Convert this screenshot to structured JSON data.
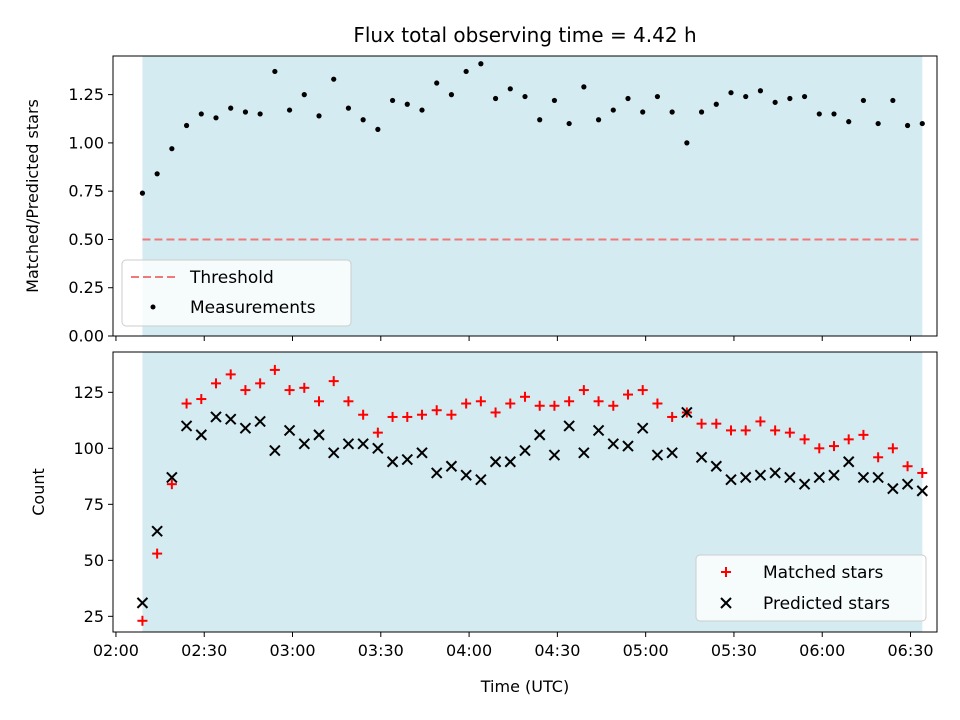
{
  "chart_data": [
    {
      "type": "scatter",
      "title": "Flux total observing time = 4.42 h",
      "xlabel": "",
      "ylabel": "Matched/Predicted stars",
      "ylim": [
        0,
        1.45
      ],
      "yticks": [
        0.0,
        0.25,
        0.5,
        0.75,
        1.0,
        1.25
      ],
      "ytick_labels": [
        "0.00",
        "0.25",
        "0.50",
        "0.75",
        "1.00",
        "1.25"
      ],
      "xlim": [
        "01:59",
        "06:39"
      ],
      "shaded_span": [
        "02:09",
        "06:34"
      ],
      "shade_color": "#d3ebf1",
      "threshold": {
        "name": "Threshold",
        "value": 0.5,
        "color": "#f07878"
      },
      "legend_position": "lower-left",
      "series": [
        {
          "name": "Measurements",
          "color": "#000000",
          "marker": "dot",
          "x": [
            "02:09",
            "02:14",
            "02:19",
            "02:24",
            "02:29",
            "02:34",
            "02:39",
            "02:44",
            "02:49",
            "02:54",
            "02:59",
            "03:04",
            "03:09",
            "03:14",
            "03:19",
            "03:24",
            "03:29",
            "03:34",
            "03:39",
            "03:44",
            "03:49",
            "03:54",
            "03:59",
            "04:04",
            "04:09",
            "04:14",
            "04:19",
            "04:24",
            "04:29",
            "04:34",
            "04:39",
            "04:44",
            "04:49",
            "04:54",
            "04:59",
            "05:04",
            "05:09",
            "05:14",
            "05:19",
            "05:24",
            "05:29",
            "05:34",
            "05:39",
            "05:44",
            "05:49",
            "05:54",
            "05:59",
            "06:04",
            "06:09",
            "06:14",
            "06:19",
            "06:24",
            "06:29",
            "06:34"
          ],
          "y": [
            0.74,
            0.84,
            0.97,
            1.09,
            1.15,
            1.13,
            1.18,
            1.16,
            1.15,
            1.37,
            1.17,
            1.25,
            1.14,
            1.33,
            1.18,
            1.12,
            1.07,
            1.22,
            1.2,
            1.17,
            1.31,
            1.25,
            1.37,
            1.41,
            1.23,
            1.28,
            1.24,
            1.12,
            1.22,
            1.1,
            1.29,
            1.12,
            1.17,
            1.23,
            1.16,
            1.24,
            1.16,
            1.0,
            1.16,
            1.2,
            1.26,
            1.24,
            1.27,
            1.21,
            1.23,
            1.24,
            1.15,
            1.15,
            1.11,
            1.22,
            1.1,
            1.22,
            1.09,
            1.1
          ]
        }
      ]
    },
    {
      "type": "scatter",
      "title": "",
      "xlabel": "Time (UTC)",
      "ylabel": "Count",
      "ylim": [
        18,
        143
      ],
      "yticks": [
        25,
        50,
        75,
        100,
        125
      ],
      "ytick_labels": [
        "25",
        "50",
        "75",
        "100",
        "125"
      ],
      "xlim": [
        "01:59",
        "06:39"
      ],
      "xticks": [
        "02:00",
        "02:30",
        "03:00",
        "03:30",
        "04:00",
        "04:30",
        "05:00",
        "05:30",
        "06:00",
        "06:30"
      ],
      "shaded_span": [
        "02:09",
        "06:34"
      ],
      "shade_color": "#d3ebf1",
      "legend_position": "lower-right",
      "x": [
        "02:09",
        "02:14",
        "02:19",
        "02:24",
        "02:29",
        "02:34",
        "02:39",
        "02:44",
        "02:49",
        "02:54",
        "02:59",
        "03:04",
        "03:09",
        "03:14",
        "03:19",
        "03:24",
        "03:29",
        "03:34",
        "03:39",
        "03:44",
        "03:49",
        "03:54",
        "03:59",
        "04:04",
        "04:09",
        "04:14",
        "04:19",
        "04:24",
        "04:29",
        "04:34",
        "04:39",
        "04:44",
        "04:49",
        "04:54",
        "04:59",
        "05:04",
        "05:09",
        "05:14",
        "05:19",
        "05:24",
        "05:29",
        "05:34",
        "05:39",
        "05:44",
        "05:49",
        "05:54",
        "05:59",
        "06:04",
        "06:09",
        "06:14",
        "06:19",
        "06:24",
        "06:29",
        "06:34"
      ],
      "series": [
        {
          "name": "Matched stars",
          "color": "#ff0000",
          "marker": "plus",
          "values": [
            23,
            53,
            84,
            120,
            122,
            129,
            133,
            126,
            129,
            135,
            126,
            127,
            121,
            130,
            121,
            115,
            107,
            114,
            114,
            115,
            117,
            115,
            120,
            121,
            116,
            120,
            123,
            119,
            119,
            121,
            126,
            121,
            119,
            124,
            126,
            120,
            114,
            116,
            111,
            111,
            108,
            108,
            112,
            108,
            107,
            104,
            100,
            101,
            104,
            106,
            96,
            100,
            92,
            89
          ]
        },
        {
          "name": "Predicted stars",
          "color": "#000000",
          "marker": "x",
          "values": [
            31,
            63,
            87,
            110,
            106,
            114,
            113,
            109,
            112,
            99,
            108,
            102,
            106,
            98,
            102,
            102,
            100,
            94,
            95,
            98,
            89,
            92,
            88,
            86,
            94,
            94,
            99,
            106,
            97,
            110,
            98,
            108,
            102,
            101,
            109,
            97,
            98,
            116,
            96,
            92,
            86,
            87,
            88,
            89,
            87,
            84,
            87,
            88,
            94,
            87,
            87,
            82,
            84,
            81
          ]
        }
      ]
    }
  ]
}
